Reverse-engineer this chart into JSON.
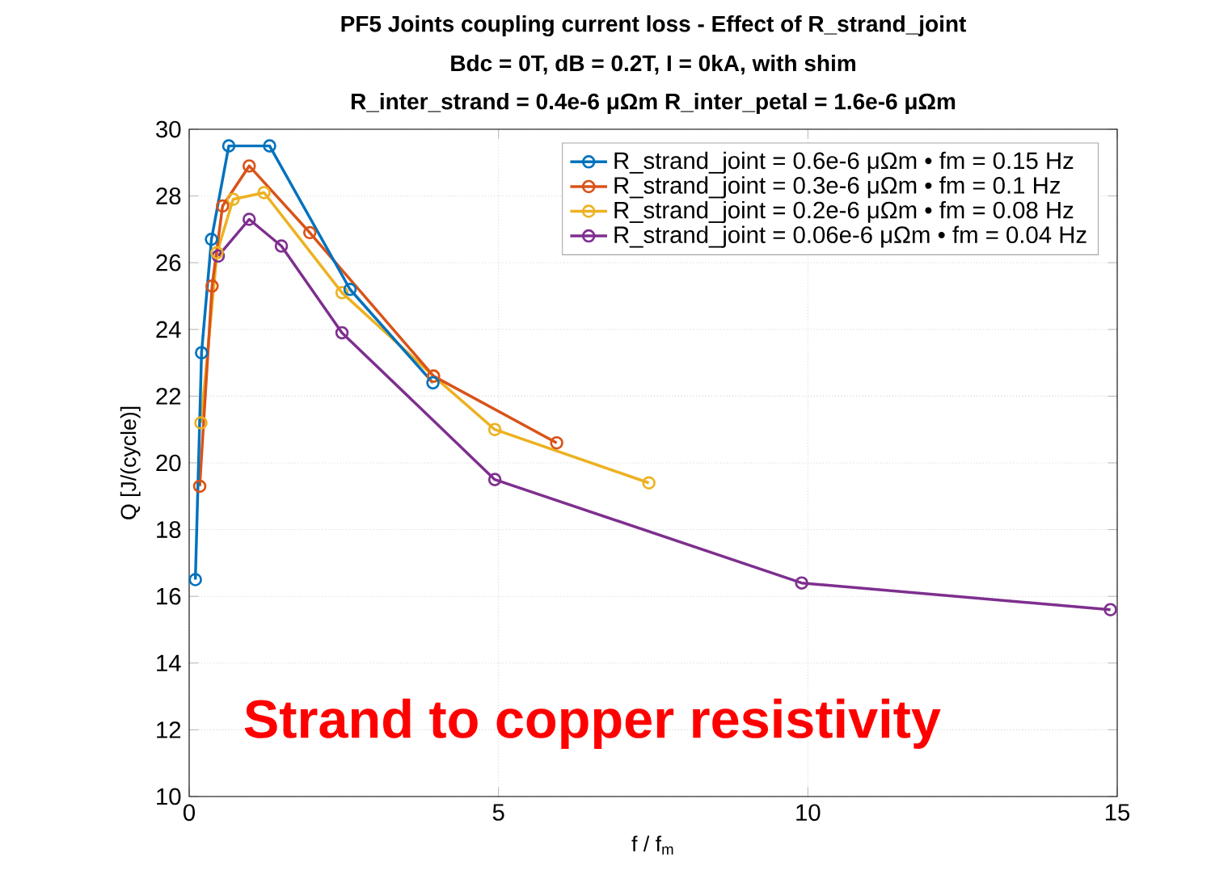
{
  "chart_data": {
    "type": "line",
    "title": "PF5 Joints coupling current loss - Effect of R_strand_joint",
    "subtitle": "Bdc = 0T, dB = 0.2T, I = 0kA, with shim",
    "annotations": [
      "R_inter_strand = 0.4e-6 μΩm R_inter_petal = 1.6e-6 μΩm",
      "Strand to copper resistivity"
    ],
    "xlabel": "f / f$_{m}$",
    "ylabel": "Q [J/(cycle)]",
    "xlim": [
      0,
      15
    ],
    "ylim": [
      10,
      30
    ],
    "xticks": [
      0,
      5,
      10,
      15
    ],
    "yticks": [
      10,
      12,
      14,
      16,
      18,
      20,
      22,
      24,
      26,
      28,
      30
    ],
    "grid": true,
    "legend": "top right",
    "marker": "circle",
    "line_style": "solid",
    "series": [
      {
        "name": "R_strand_joint = 0.6e-6 μΩm  • fm = 0.15 Hz",
        "color": "#0072bd",
        "x": [
          0.1,
          0.2,
          0.36,
          0.64,
          1.3,
          2.6,
          3.94
        ],
        "values": [
          16.5,
          23.3,
          26.7,
          29.5,
          29.5,
          25.2,
          22.4
        ]
      },
      {
        "name": "R_strand_joint = 0.3e-6 μΩm  • fm = 0.1 Hz",
        "color": "#d95319",
        "x": [
          0.17,
          0.37,
          0.54,
          0.97,
          1.95,
          3.95,
          5.94
        ],
        "values": [
          19.3,
          25.3,
          27.7,
          28.9,
          26.9,
          22.6,
          20.6
        ]
      },
      {
        "name": "R_strand_joint = 0.2e-6 μΩm  • fm = 0.08 Hz",
        "color": "#edb120",
        "x": [
          0.19,
          0.45,
          0.71,
          1.21,
          2.47,
          3.95,
          4.94,
          7.43
        ],
        "values": [
          21.2,
          26.3,
          27.9,
          28.1,
          25.1,
          22.6,
          21.0,
          19.4
        ]
      },
      {
        "name": "R_strand_joint = 0.06e-6 μΩm • fm = 0.04 Hz",
        "color": "#7e2f8e",
        "x": [
          0.47,
          0.97,
          1.49,
          2.47,
          4.94,
          9.9,
          14.89
        ],
        "values": [
          26.2,
          27.3,
          26.5,
          23.9,
          19.5,
          16.4,
          15.6
        ]
      }
    ]
  }
}
